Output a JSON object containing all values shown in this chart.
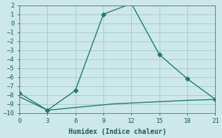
{
  "xlabel": "Humidex (Indice chaleur)",
  "bg_color": "#cce8e8",
  "grid_color": "#aacccc",
  "line_color": "#1a7a6e",
  "x_main": [
    0,
    3,
    6,
    9,
    12,
    15,
    18,
    21
  ],
  "y_main": [
    -7.8,
    -9.7,
    -7.5,
    1.0,
    2.2,
    -3.5,
    -6.2,
    -8.5
  ],
  "x_flat": [
    0,
    3,
    6,
    7,
    8,
    9,
    10,
    11,
    12,
    13,
    14,
    15,
    16,
    17,
    18,
    19,
    20,
    21
  ],
  "y_flat": [
    -8.2,
    -9.7,
    -9.4,
    -9.3,
    -9.2,
    -9.1,
    -9.0,
    -8.95,
    -8.9,
    -8.85,
    -8.8,
    -8.75,
    -8.7,
    -8.65,
    -8.6,
    -8.57,
    -8.54,
    -8.5
  ],
  "xlim": [
    0,
    21
  ],
  "ylim": [
    -10,
    2
  ],
  "yticks": [
    2,
    1,
    0,
    -1,
    -2,
    -3,
    -4,
    -5,
    -6,
    -7,
    -8,
    -9,
    -10
  ],
  "xticks": [
    0,
    3,
    6,
    9,
    12,
    15,
    18,
    21
  ],
  "markersize": 3.5,
  "linewidth": 1.0,
  "tick_fontsize": 6.5,
  "xlabel_fontsize": 7.0
}
